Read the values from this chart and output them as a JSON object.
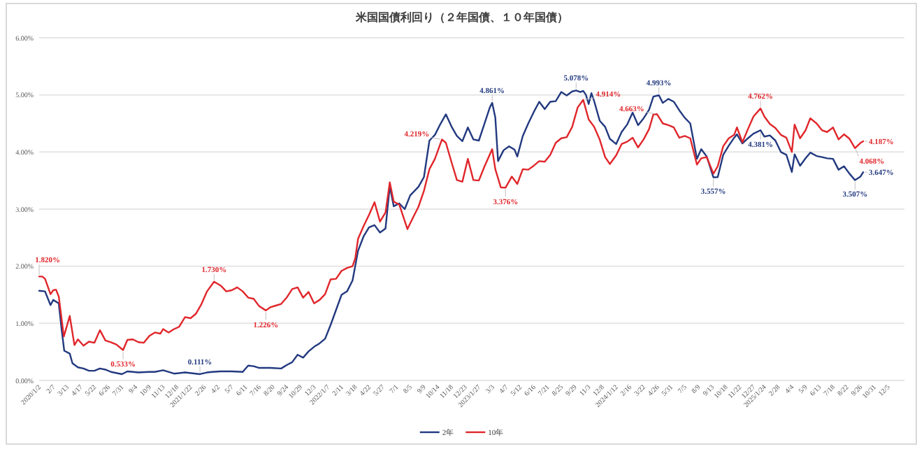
{
  "chart_data": {
    "type": "line",
    "title": "米国国債利回り（２年国債、１０年国債）",
    "xlim": [
      "2020-01-02",
      "2026-01-16"
    ],
    "ylim": [
      0,
      6
    ],
    "yticks": [
      {
        "value": 0,
        "label": "0.00%"
      },
      {
        "value": 1,
        "label": "1.00%"
      },
      {
        "value": 2,
        "label": "2.00%"
      },
      {
        "value": 3,
        "label": "3.00%"
      },
      {
        "value": 4,
        "label": "4.00%"
      },
      {
        "value": 5,
        "label": "5.00%"
      },
      {
        "value": 6,
        "label": "6.00%"
      }
    ],
    "xticks": [
      {
        "value": "2020-01-02",
        "label": "2020/1/2"
      },
      {
        "value": "2020-02-07",
        "label": "2/7"
      },
      {
        "value": "2020-03-13",
        "label": "3/13"
      },
      {
        "value": "2020-04-17",
        "label": "4/17"
      },
      {
        "value": "2020-05-22",
        "label": "5/22"
      },
      {
        "value": "2020-06-26",
        "label": "6/26"
      },
      {
        "value": "2020-07-31",
        "label": "7/31"
      },
      {
        "value": "2020-09-04",
        "label": "9/4"
      },
      {
        "value": "2020-10-09",
        "label": "10/9"
      },
      {
        "value": "2020-11-13",
        "label": "11/13"
      },
      {
        "value": "2020-12-18",
        "label": "12/18"
      },
      {
        "value": "2021-01-22",
        "label": "2021/1/22"
      },
      {
        "value": "2021-02-26",
        "label": "2/26"
      },
      {
        "value": "2021-04-02",
        "label": "4/2"
      },
      {
        "value": "2021-05-07",
        "label": "5/7"
      },
      {
        "value": "2021-06-11",
        "label": "6/11"
      },
      {
        "value": "2021-07-16",
        "label": "7/16"
      },
      {
        "value": "2021-08-20",
        "label": "8/20"
      },
      {
        "value": "2021-09-24",
        "label": "9/24"
      },
      {
        "value": "2021-10-29",
        "label": "10/29"
      },
      {
        "value": "2021-12-03",
        "label": "12/3"
      },
      {
        "value": "2022-01-07",
        "label": "2022/1/7"
      },
      {
        "value": "2022-02-11",
        "label": "2/11"
      },
      {
        "value": "2022-03-18",
        "label": "3/18"
      },
      {
        "value": "2022-04-22",
        "label": "4/22"
      },
      {
        "value": "2022-05-27",
        "label": "5/27"
      },
      {
        "value": "2022-07-01",
        "label": "7/1"
      },
      {
        "value": "2022-08-05",
        "label": "8/5"
      },
      {
        "value": "2022-09-09",
        "label": "9/9"
      },
      {
        "value": "2022-10-14",
        "label": "10/14"
      },
      {
        "value": "2022-11-18",
        "label": "11/18"
      },
      {
        "value": "2022-12-23",
        "label": "12/23"
      },
      {
        "value": "2023-01-27",
        "label": "2023/1/27"
      },
      {
        "value": "2023-03-03",
        "label": "3/3"
      },
      {
        "value": "2023-04-07",
        "label": "4/7"
      },
      {
        "value": "2023-05-12",
        "label": "5/12"
      },
      {
        "value": "2023-06-16",
        "label": "6/16"
      },
      {
        "value": "2023-07-21",
        "label": "7/21"
      },
      {
        "value": "2023-08-25",
        "label": "8/25"
      },
      {
        "value": "2023-09-29",
        "label": "9/29"
      },
      {
        "value": "2023-11-03",
        "label": "11/3"
      },
      {
        "value": "2023-12-08",
        "label": "12/8"
      },
      {
        "value": "2024-01-12",
        "label": "2024/1/12"
      },
      {
        "value": "2024-02-16",
        "label": "2/16"
      },
      {
        "value": "2024-03-22",
        "label": "3/22"
      },
      {
        "value": "2024-04-26",
        "label": "4/26"
      },
      {
        "value": "2024-05-31",
        "label": "5/31"
      },
      {
        "value": "2024-07-05",
        "label": "7/5"
      },
      {
        "value": "2024-08-09",
        "label": "8/9"
      },
      {
        "value": "2024-09-13",
        "label": "9/13"
      },
      {
        "value": "2024-10-18",
        "label": "10/18"
      },
      {
        "value": "2024-11-22",
        "label": "11/22"
      },
      {
        "value": "2024-12-27",
        "label": "12/27"
      },
      {
        "value": "2025-01-24",
        "label": "2025/1/24"
      },
      {
        "value": "2025-02-28",
        "label": "2/28"
      },
      {
        "value": "2025-04-04",
        "label": "4/4"
      },
      {
        "value": "2025-05-09",
        "label": "5/9"
      },
      {
        "value": "2025-06-13",
        "label": "6/13"
      },
      {
        "value": "2025-07-18",
        "label": "7/18"
      },
      {
        "value": "2025-08-22",
        "label": "8/22"
      },
      {
        "value": "2025-09-26",
        "label": "9/26"
      },
      {
        "value": "2025-10-31",
        "label": "10/31"
      },
      {
        "value": "2025-12-05",
        "label": "12/5"
      }
    ],
    "grid": "y",
    "legend": "bottom",
    "series": [
      {
        "name": "2年",
        "color": "#22397f",
        "x": [
          "2020-01-02",
          "2020-01-17",
          "2020-01-31",
          "2020-02-07",
          "2020-02-21",
          "2020-02-28",
          "2020-03-06",
          "2020-03-20",
          "2020-03-27",
          "2020-04-10",
          "2020-04-24",
          "2020-05-08",
          "2020-05-22",
          "2020-06-05",
          "2020-06-19",
          "2020-07-03",
          "2020-07-31",
          "2020-08-14",
          "2020-09-11",
          "2020-10-09",
          "2020-10-23",
          "2020-11-13",
          "2020-12-11",
          "2021-01-08",
          "2021-02-15",
          "2021-03-05",
          "2021-03-19",
          "2021-04-09",
          "2021-05-07",
          "2021-06-04",
          "2021-06-18",
          "2021-07-02",
          "2021-07-16",
          "2021-08-13",
          "2021-09-10",
          "2021-09-24",
          "2021-10-08",
          "2021-10-22",
          "2021-11-05",
          "2021-11-19",
          "2021-12-03",
          "2021-12-17",
          "2021-12-31",
          "2022-01-14",
          "2022-02-11",
          "2022-02-25",
          "2022-03-11",
          "2022-03-25",
          "2022-04-08",
          "2022-04-22",
          "2022-05-06",
          "2022-05-20",
          "2022-06-03",
          "2022-06-14",
          "2022-06-24",
          "2022-07-08",
          "2022-07-22",
          "2022-08-05",
          "2022-08-26",
          "2022-09-09",
          "2022-09-23",
          "2022-10-07",
          "2022-10-21",
          "2022-11-04",
          "2022-11-18",
          "2022-12-02",
          "2022-12-16",
          "2022-12-30",
          "2023-01-13",
          "2023-01-27",
          "2023-02-10",
          "2023-02-24",
          "2023-03-02",
          "2023-03-10",
          "2023-03-17",
          "2023-03-31",
          "2023-04-14",
          "2023-04-28",
          "2023-05-05",
          "2023-05-19",
          "2023-06-02",
          "2023-06-16",
          "2023-06-30",
          "2023-07-14",
          "2023-07-28",
          "2023-08-11",
          "2023-08-25",
          "2023-09-08",
          "2023-09-22",
          "2023-10-02",
          "2023-10-13",
          "2023-10-20",
          "2023-10-27",
          "2023-11-03",
          "2023-11-10",
          "2023-11-17",
          "2023-12-01",
          "2023-12-15",
          "2023-12-27",
          "2024-01-12",
          "2024-01-26",
          "2024-02-09",
          "2024-02-23",
          "2024-03-08",
          "2024-03-22",
          "2024-04-05",
          "2024-04-16",
          "2024-04-30",
          "2024-05-10",
          "2024-05-24",
          "2024-06-07",
          "2024-06-21",
          "2024-07-05",
          "2024-07-19",
          "2024-08-05",
          "2024-08-16",
          "2024-08-30",
          "2024-09-16",
          "2024-09-27",
          "2024-10-11",
          "2024-10-25",
          "2024-11-08",
          "2024-11-15",
          "2024-11-29",
          "2024-12-13",
          "2024-12-27",
          "2025-01-14",
          "2025-01-24",
          "2025-02-07",
          "2025-02-21",
          "2025-03-07",
          "2025-03-21",
          "2025-04-04",
          "2025-04-11",
          "2025-04-25",
          "2025-05-09",
          "2025-05-21",
          "2025-06-06",
          "2025-06-20",
          "2025-07-03",
          "2025-07-18",
          "2025-08-01",
          "2025-08-15",
          "2025-08-29",
          "2025-09-12",
          "2025-09-26",
          "2025-10-03"
        ],
        "values": [
          1.57,
          1.56,
          1.32,
          1.41,
          1.35,
          0.91,
          0.52,
          0.47,
          0.3,
          0.23,
          0.21,
          0.17,
          0.17,
          0.21,
          0.19,
          0.15,
          0.11,
          0.16,
          0.14,
          0.15,
          0.15,
          0.18,
          0.12,
          0.14,
          0.111,
          0.14,
          0.15,
          0.16,
          0.16,
          0.15,
          0.26,
          0.25,
          0.22,
          0.22,
          0.21,
          0.27,
          0.32,
          0.45,
          0.4,
          0.51,
          0.59,
          0.65,
          0.73,
          0.97,
          1.5,
          1.56,
          1.75,
          2.27,
          2.52,
          2.68,
          2.72,
          2.59,
          2.66,
          3.4,
          3.05,
          3.1,
          3.0,
          3.24,
          3.39,
          3.56,
          4.2,
          4.3,
          4.49,
          4.66,
          4.45,
          4.28,
          4.19,
          4.43,
          4.22,
          4.2,
          4.49,
          4.78,
          4.861,
          4.6,
          3.84,
          4.03,
          4.1,
          4.04,
          3.92,
          4.28,
          4.5,
          4.7,
          4.88,
          4.75,
          4.88,
          4.89,
          5.05,
          4.99,
          5.06,
          5.078,
          5.05,
          5.07,
          5.0,
          4.84,
          5.03,
          4.89,
          4.55,
          4.44,
          4.23,
          4.14,
          4.35,
          4.48,
          4.69,
          4.47,
          4.59,
          4.74,
          4.97,
          4.993,
          4.86,
          4.93,
          4.88,
          4.73,
          4.6,
          4.5,
          3.88,
          4.05,
          3.92,
          3.557,
          3.56,
          3.95,
          4.11,
          4.25,
          4.31,
          4.15,
          4.24,
          4.32,
          4.381,
          4.27,
          4.29,
          4.2,
          4.0,
          3.95,
          3.65,
          3.96,
          3.76,
          3.89,
          3.99,
          3.93,
          3.91,
          3.89,
          3.88,
          3.69,
          3.75,
          3.62,
          3.507,
          3.57,
          3.647
        ]
      },
      {
        "name": "10年",
        "color": "#e0262b",
        "x": [
          "2020-01-02",
          "2020-01-10",
          "2020-01-17",
          "2020-01-31",
          "2020-02-07",
          "2020-02-14",
          "2020-02-21",
          "2020-03-05",
          "2020-03-20",
          "2020-04-01",
          "2020-04-10",
          "2020-04-24",
          "2020-05-08",
          "2020-05-22",
          "2020-06-05",
          "2020-06-19",
          "2020-07-03",
          "2020-07-17",
          "2020-08-03",
          "2020-08-14",
          "2020-08-28",
          "2020-09-11",
          "2020-09-25",
          "2020-10-09",
          "2020-10-23",
          "2020-11-06",
          "2020-11-13",
          "2020-11-27",
          "2020-12-11",
          "2020-12-24",
          "2021-01-08",
          "2021-01-22",
          "2021-02-05",
          "2021-02-19",
          "2021-03-05",
          "2021-03-23",
          "2021-04-09",
          "2021-04-23",
          "2021-05-07",
          "2021-05-21",
          "2021-06-04",
          "2021-06-18",
          "2021-07-02",
          "2021-07-16",
          "2021-08-02",
          "2021-08-13",
          "2021-08-27",
          "2021-09-10",
          "2021-09-24",
          "2021-10-08",
          "2021-10-22",
          "2021-11-05",
          "2021-11-19",
          "2021-12-03",
          "2021-12-17",
          "2021-12-31",
          "2022-01-14",
          "2022-01-28",
          "2022-02-11",
          "2022-02-25",
          "2022-03-11",
          "2022-03-18",
          "2022-03-25",
          "2022-04-08",
          "2022-04-22",
          "2022-05-06",
          "2022-05-20",
          "2022-06-03",
          "2022-06-14",
          "2022-06-24",
          "2022-07-08",
          "2022-07-29",
          "2022-08-12",
          "2022-08-26",
          "2022-09-09",
          "2022-09-23",
          "2022-10-07",
          "2022-10-25",
          "2022-11-04",
          "2022-11-18",
          "2022-12-02",
          "2022-12-16",
          "2022-12-30",
          "2023-01-13",
          "2023-01-27",
          "2023-02-10",
          "2023-03-02",
          "2023-03-10",
          "2023-03-24",
          "2023-04-05",
          "2023-04-21",
          "2023-05-05",
          "2023-05-19",
          "2023-06-02",
          "2023-06-16",
          "2023-06-30",
          "2023-07-14",
          "2023-07-28",
          "2023-08-11",
          "2023-08-25",
          "2023-09-08",
          "2023-09-22",
          "2023-10-06",
          "2023-10-20",
          "2023-11-03",
          "2023-11-17",
          "2023-12-01",
          "2023-12-15",
          "2023-12-27",
          "2024-01-12",
          "2024-01-26",
          "2024-02-09",
          "2024-02-23",
          "2024-03-08",
          "2024-03-22",
          "2024-04-05",
          "2024-04-16",
          "2024-04-25",
          "2024-05-10",
          "2024-05-24",
          "2024-06-07",
          "2024-06-21",
          "2024-07-05",
          "2024-07-19",
          "2024-08-05",
          "2024-08-16",
          "2024-08-30",
          "2024-09-16",
          "2024-09-27",
          "2024-10-11",
          "2024-10-25",
          "2024-11-08",
          "2024-11-15",
          "2024-11-29",
          "2024-12-13",
          "2024-12-27",
          "2025-01-14",
          "2025-01-24",
          "2025-02-07",
          "2025-02-21",
          "2025-03-07",
          "2025-03-21",
          "2025-04-04",
          "2025-04-11",
          "2025-04-25",
          "2025-05-09",
          "2025-05-21",
          "2025-06-06",
          "2025-06-20",
          "2025-07-03",
          "2025-07-18",
          "2025-08-01",
          "2025-08-15",
          "2025-08-29",
          "2025-09-12",
          "2025-09-26",
          "2025-10-03"
        ],
        "values": [
          1.82,
          1.82,
          1.78,
          1.51,
          1.58,
          1.59,
          1.47,
          0.77,
          1.13,
          0.62,
          0.72,
          0.61,
          0.68,
          0.66,
          0.88,
          0.7,
          0.67,
          0.63,
          0.533,
          0.71,
          0.72,
          0.67,
          0.66,
          0.78,
          0.84,
          0.82,
          0.9,
          0.84,
          0.9,
          0.94,
          1.11,
          1.09,
          1.17,
          1.34,
          1.56,
          1.73,
          1.66,
          1.56,
          1.58,
          1.63,
          1.56,
          1.45,
          1.43,
          1.3,
          1.226,
          1.28,
          1.31,
          1.34,
          1.45,
          1.6,
          1.63,
          1.45,
          1.55,
          1.35,
          1.41,
          1.51,
          1.77,
          1.78,
          1.92,
          1.97,
          2.0,
          2.14,
          2.48,
          2.7,
          2.9,
          3.12,
          2.78,
          2.94,
          3.47,
          3.13,
          3.08,
          2.65,
          2.85,
          3.04,
          3.32,
          3.7,
          3.88,
          4.219,
          4.16,
          3.83,
          3.51,
          3.48,
          3.88,
          3.51,
          3.5,
          3.74,
          4.05,
          3.7,
          3.38,
          3.376,
          3.57,
          3.44,
          3.7,
          3.69,
          3.76,
          3.84,
          3.83,
          3.95,
          4.16,
          4.24,
          4.26,
          4.44,
          4.78,
          4.914,
          4.57,
          4.44,
          4.22,
          3.91,
          3.79,
          3.94,
          4.14,
          4.18,
          4.25,
          4.08,
          4.22,
          4.4,
          4.66,
          4.663,
          4.5,
          4.47,
          4.43,
          4.25,
          4.28,
          4.24,
          3.78,
          3.89,
          3.91,
          3.62,
          3.75,
          4.1,
          4.24,
          4.3,
          4.43,
          4.17,
          4.4,
          4.62,
          4.762,
          4.62,
          4.49,
          4.42,
          4.3,
          4.25,
          4.0,
          4.48,
          4.24,
          4.38,
          4.59,
          4.5,
          4.38,
          4.35,
          4.43,
          4.22,
          4.31,
          4.23,
          4.068,
          4.16,
          4.187
        ]
      }
    ],
    "annotations": [
      {
        "text": "1.820%",
        "x": "2020-01-02",
        "y": 1.82
      },
      {
        "text": "0.533%",
        "x": "2020-08-03",
        "y": 0.533
      },
      {
        "text": "1.730%",
        "x": "2021-03-23",
        "y": 1.73
      },
      {
        "text": "1.226%",
        "x": "2021-08-02",
        "y": 1.226
      },
      {
        "text": "0.111%",
        "x": "2021-02-15",
        "y": 0.111
      },
      {
        "text": "4.219%",
        "x": "2022-10-25",
        "y": 4.219
      },
      {
        "text": "3.376%",
        "x": "2023-04-05",
        "y": 3.376
      },
      {
        "text": "4.861%",
        "x": "2023-03-02",
        "y": 4.861
      },
      {
        "text": "5.078%",
        "x": "2023-10-02",
        "y": 5.078
      },
      {
        "text": "4.914%",
        "x": "2023-10-20",
        "y": 4.914
      },
      {
        "text": "4.993%",
        "x": "2024-04-30",
        "y": 4.993
      },
      {
        "text": "4.663%",
        "x": "2024-04-25",
        "y": 4.663
      },
      {
        "text": "3.557%",
        "x": "2024-09-16",
        "y": 3.557
      },
      {
        "text": "4.762%",
        "x": "2025-01-14",
        "y": 4.762
      },
      {
        "text": "4.381%",
        "x": "2025-01-14",
        "y": 4.381
      },
      {
        "text": "3.507%",
        "x": "2025-09-12",
        "y": 3.507
      },
      {
        "text": "4.068%",
        "x": "2025-09-12",
        "y": 4.068
      },
      {
        "text": "4.187%",
        "x": "2025-10-03",
        "y": 4.187
      },
      {
        "text": "3.647%",
        "x": "2025-10-03",
        "y": 3.647
      }
    ]
  }
}
